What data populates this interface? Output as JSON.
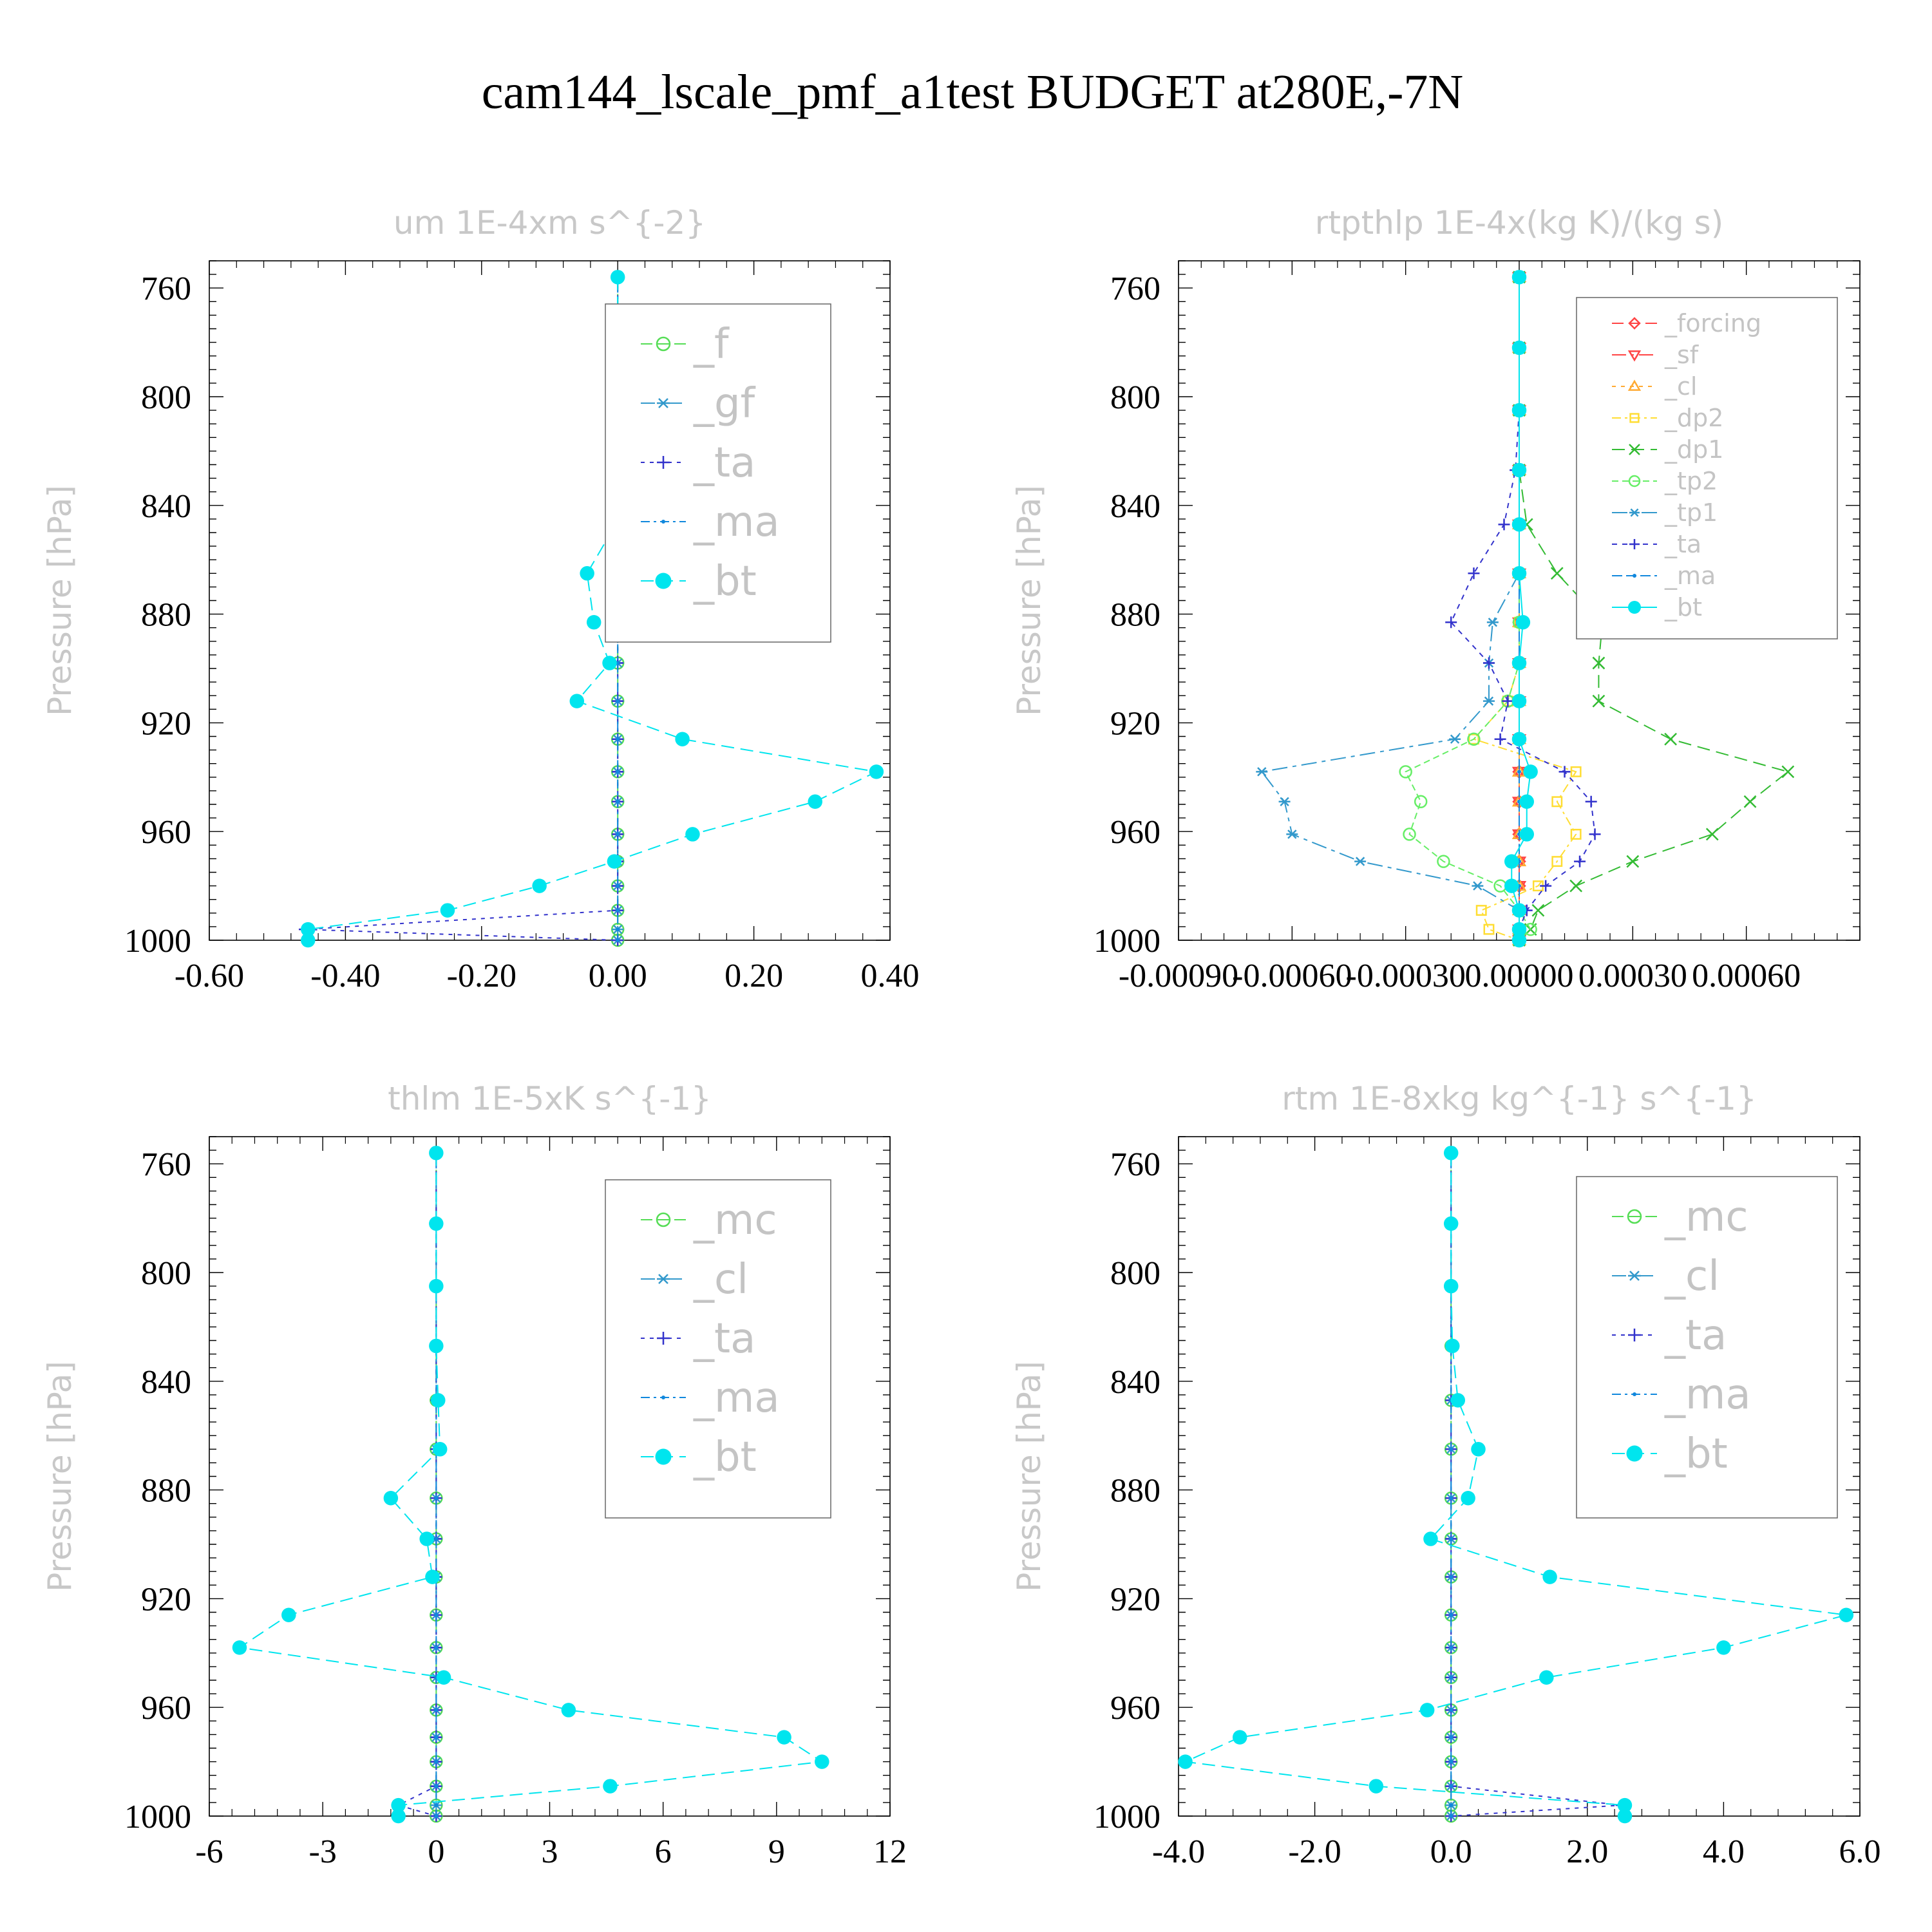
{
  "title": "cam144_lscale_pmf_a1test  BUDGET at280E,-7N",
  "chart_data": [
    {
      "type": "line",
      "title": "um   1E-4xm s^{-2}",
      "ylabel": "Pressure [hPa]",
      "xlim": [
        -0.6,
        0.4
      ],
      "xticks": [
        "-0.60",
        "-0.40",
        "-0.20",
        "0.00",
        "0.20",
        "0.40"
      ],
      "ylim": [
        750,
        1000
      ],
      "yticks": [
        760,
        800,
        840,
        880,
        920,
        960,
        1000
      ],
      "legend_position": "top-right",
      "pressure": [
        756,
        782,
        805,
        827,
        847,
        865,
        883,
        898,
        912,
        926,
        938,
        949,
        961,
        971,
        980,
        989,
        996,
        1000
      ],
      "series": [
        {
          "name": "_f",
          "color": "#55dd55",
          "marker": "circle",
          "values": [
            0,
            0,
            0,
            0,
            0,
            0,
            0,
            0,
            0,
            0,
            0,
            0,
            0,
            0,
            0,
            0,
            0,
            0
          ]
        },
        {
          "name": "_gf",
          "color": "#3399cc",
          "marker": "asterisk",
          "values": [
            0,
            0,
            0,
            0,
            0,
            0,
            0,
            0,
            0,
            0,
            0,
            0,
            0,
            0,
            0,
            0,
            0,
            0
          ]
        },
        {
          "name": "_ta",
          "color": "#3333cc",
          "marker": "plus",
          "values": [
            0,
            0,
            0,
            0,
            0,
            0,
            0,
            0,
            0,
            0,
            0,
            0,
            0,
            0,
            0,
            0,
            -0.46,
            0
          ]
        },
        {
          "name": "_ma",
          "color": "#1188dd",
          "marker": "dot",
          "values": [
            0,
            0,
            0,
            0,
            0,
            0,
            0,
            0,
            0,
            0,
            0,
            0,
            0,
            0,
            0,
            0,
            0,
            0
          ]
        },
        {
          "name": "_bt",
          "color": "#00e5ee",
          "marker": "filled-circle",
          "values": [
            0,
            0,
            0,
            0,
            -0.003,
            -0.045,
            -0.035,
            -0.012,
            -0.06,
            0.095,
            0.38,
            0.29,
            0.11,
            -0.005,
            -0.115,
            -0.25,
            -0.455,
            -0.455
          ]
        }
      ]
    },
    {
      "type": "line",
      "title": "rtpthlp   1E-4x(kg K)/(kg s)",
      "ylabel": "Pressure [hPa]",
      "xlim": [
        -0.0009,
        0.0009
      ],
      "xticks": [
        "-0.00090",
        "-0.00060",
        "-0.00030",
        "0.00000",
        "0.00030",
        "0.00060"
      ],
      "ylim": [
        750,
        1000
      ],
      "yticks": [
        760,
        800,
        840,
        880,
        920,
        960,
        1000
      ],
      "legend_position": "top-right",
      "pressure": [
        756,
        782,
        805,
        827,
        847,
        865,
        883,
        898,
        912,
        926,
        938,
        949,
        961,
        971,
        980,
        989,
        996,
        1000
      ],
      "series": [
        {
          "name": "_forcing",
          "color": "#ff4444",
          "marker": "diamond",
          "values": [
            0,
            0,
            0,
            0,
            0,
            0,
            0,
            0,
            0,
            0,
            0,
            0,
            0,
            0,
            0,
            0,
            0,
            0
          ]
        },
        {
          "name": "_sf",
          "color": "#ff4444",
          "marker": "triangle-down",
          "values": [
            0,
            0,
            0,
            0,
            0,
            0,
            0,
            0,
            0,
            0,
            0,
            0,
            0,
            0,
            0,
            0,
            0,
            0
          ]
        },
        {
          "name": "_cl",
          "color": "#ffaa33",
          "marker": "triangle-up",
          "values": [
            0,
            0,
            0,
            0,
            0,
            0,
            0,
            0,
            0,
            0,
            0,
            0,
            0,
            0,
            0,
            0,
            0,
            0
          ]
        },
        {
          "name": "_dp2",
          "color": "#ffdd33",
          "marker": "square",
          "values": [
            0,
            0,
            0,
            0,
            0,
            0,
            0,
            0,
            -3e-05,
            -0.00012,
            0.00015,
            0.0001,
            0.00015,
            0.0001,
            5e-05,
            -0.0001,
            -8e-05,
            0
          ]
        },
        {
          "name": "_dp1",
          "color": "#33bb33",
          "marker": "x",
          "values": [
            0,
            0,
            0,
            0,
            2e-05,
            0.0001,
            0.00022,
            0.00021,
            0.00021,
            0.0004,
            0.00071,
            0.00061,
            0.00051,
            0.0003,
            0.00015,
            5e-05,
            3e-05,
            0
          ]
        },
        {
          "name": "_tp2",
          "color": "#66ee66",
          "marker": "circle",
          "values": [
            0,
            0,
            0,
            0,
            0,
            0,
            0,
            0,
            -3e-05,
            -0.00012,
            -0.0003,
            -0.00026,
            -0.00029,
            -0.0002,
            -5e-05,
            0,
            3e-05,
            0
          ]
        },
        {
          "name": "_tp1",
          "color": "#3399cc",
          "marker": "asterisk",
          "values": [
            0,
            0,
            0,
            0,
            0,
            0,
            -7e-05,
            -8e-05,
            -8e-05,
            -0.00017,
            -0.00068,
            -0.00062,
            -0.0006,
            -0.00042,
            -0.00011,
            0,
            0,
            0
          ]
        },
        {
          "name": "_ta",
          "color": "#3333cc",
          "marker": "plus",
          "values": [
            0,
            0,
            0,
            -1e-05,
            -4e-05,
            -0.00012,
            -0.00018,
            -8e-05,
            -3e-05,
            -5e-05,
            0.00012,
            0.00019,
            0.0002,
            0.00016,
            7e-05,
            2e-05,
            0,
            0
          ]
        },
        {
          "name": "_ma",
          "color": "#1188dd",
          "marker": "dot",
          "values": [
            0,
            0,
            0,
            0,
            0,
            0,
            0,
            0,
            0,
            0,
            0,
            0,
            0,
            0,
            0,
            0,
            0,
            0
          ]
        },
        {
          "name": "_bt",
          "color": "#00e5ee",
          "marker": "filled-circle",
          "values": [
            0,
            0,
            0,
            0,
            0,
            0,
            1e-05,
            0,
            0,
            0,
            3e-05,
            2e-05,
            2e-05,
            -2e-05,
            -2e-05,
            0,
            0,
            0
          ]
        }
      ]
    },
    {
      "type": "line",
      "title": "thlm   1E-5xK s^{-1}",
      "ylabel": "Pressure [hPa]",
      "xlim": [
        -6,
        12
      ],
      "xticks": [
        "-6",
        "-3",
        "0",
        "3",
        "6",
        "9",
        "12"
      ],
      "ylim": [
        750,
        1000
      ],
      "yticks": [
        760,
        800,
        840,
        880,
        920,
        960,
        1000
      ],
      "legend_position": "top-right",
      "pressure": [
        756,
        782,
        805,
        827,
        847,
        865,
        883,
        898,
        912,
        926,
        938,
        949,
        961,
        971,
        980,
        989,
        996,
        1000
      ],
      "series": [
        {
          "name": "_mc",
          "color": "#55dd55",
          "marker": "circle",
          "values": [
            0,
            0,
            0,
            0,
            0,
            0,
            0,
            0,
            0,
            0,
            0,
            0,
            0,
            0,
            0,
            0,
            0,
            0
          ]
        },
        {
          "name": "_cl",
          "color": "#3399cc",
          "marker": "asterisk",
          "values": [
            0,
            0,
            0,
            0,
            0,
            0,
            0,
            0,
            0,
            0,
            0,
            0,
            0,
            0,
            0,
            0,
            0,
            0
          ]
        },
        {
          "name": "_ta",
          "color": "#3333cc",
          "marker": "plus",
          "values": [
            0,
            0,
            0,
            0,
            0,
            0,
            0,
            0,
            0,
            0,
            0,
            0,
            0,
            0,
            0,
            0,
            -1,
            0
          ]
        },
        {
          "name": "_ma",
          "color": "#1188dd",
          "marker": "dot",
          "values": [
            0,
            0,
            0,
            0,
            0,
            0,
            0,
            0,
            0,
            0,
            0,
            0,
            0,
            0,
            0,
            0,
            0,
            0
          ]
        },
        {
          "name": "_bt",
          "color": "#00e5ee",
          "marker": "filled-circle",
          "values": [
            0,
            0,
            0,
            0,
            0.05,
            0.1,
            -1.2,
            -0.25,
            -0.1,
            -3.9,
            -5.2,
            0.2,
            3.5,
            9.2,
            10.2,
            4.6,
            -1.0,
            -1.0
          ]
        }
      ]
    },
    {
      "type": "line",
      "title": "rtm   1E-8xkg kg^{-1} s^{-1}",
      "ylabel": "Pressure [hPa]",
      "xlim": [
        -4,
        6
      ],
      "xticks": [
        "-4.0",
        "-2.0",
        "0.0",
        "2.0",
        "4.0",
        "6.0"
      ],
      "ylim": [
        750,
        1000
      ],
      "yticks": [
        760,
        800,
        840,
        880,
        920,
        960,
        1000
      ],
      "legend_position": "top-right",
      "pressure": [
        756,
        782,
        805,
        827,
        847,
        865,
        883,
        898,
        912,
        926,
        938,
        949,
        961,
        971,
        980,
        989,
        996,
        1000
      ],
      "series": [
        {
          "name": "_mc",
          "color": "#55dd55",
          "marker": "circle",
          "values": [
            0,
            0,
            0,
            0,
            0,
            0,
            0,
            0,
            0,
            0,
            0,
            0,
            0,
            0,
            0,
            0,
            0,
            0
          ]
        },
        {
          "name": "_cl",
          "color": "#3399cc",
          "marker": "asterisk",
          "values": [
            0,
            0,
            0,
            0,
            0,
            0,
            0,
            0,
            0,
            0,
            0,
            0,
            0,
            0,
            0,
            0,
            0,
            0
          ]
        },
        {
          "name": "_ta",
          "color": "#3333cc",
          "marker": "plus",
          "values": [
            0,
            0,
            0,
            0,
            0,
            0,
            0,
            0,
            0,
            0,
            0,
            0,
            0,
            0,
            0,
            0,
            2.5,
            0
          ]
        },
        {
          "name": "_ma",
          "color": "#1188dd",
          "marker": "dot",
          "values": [
            0,
            0,
            0,
            0,
            0,
            0,
            0,
            0,
            0,
            0,
            0,
            0,
            0,
            0,
            0,
            0,
            0,
            0
          ]
        },
        {
          "name": "_bt",
          "color": "#00e5ee",
          "marker": "filled-circle",
          "values": [
            0,
            0,
            0,
            0.02,
            0.1,
            0.4,
            0.25,
            -0.3,
            1.45,
            5.8,
            4.0,
            1.4,
            -0.35,
            -3.1,
            -3.9,
            -1.1,
            2.55,
            2.55
          ]
        }
      ]
    }
  ]
}
